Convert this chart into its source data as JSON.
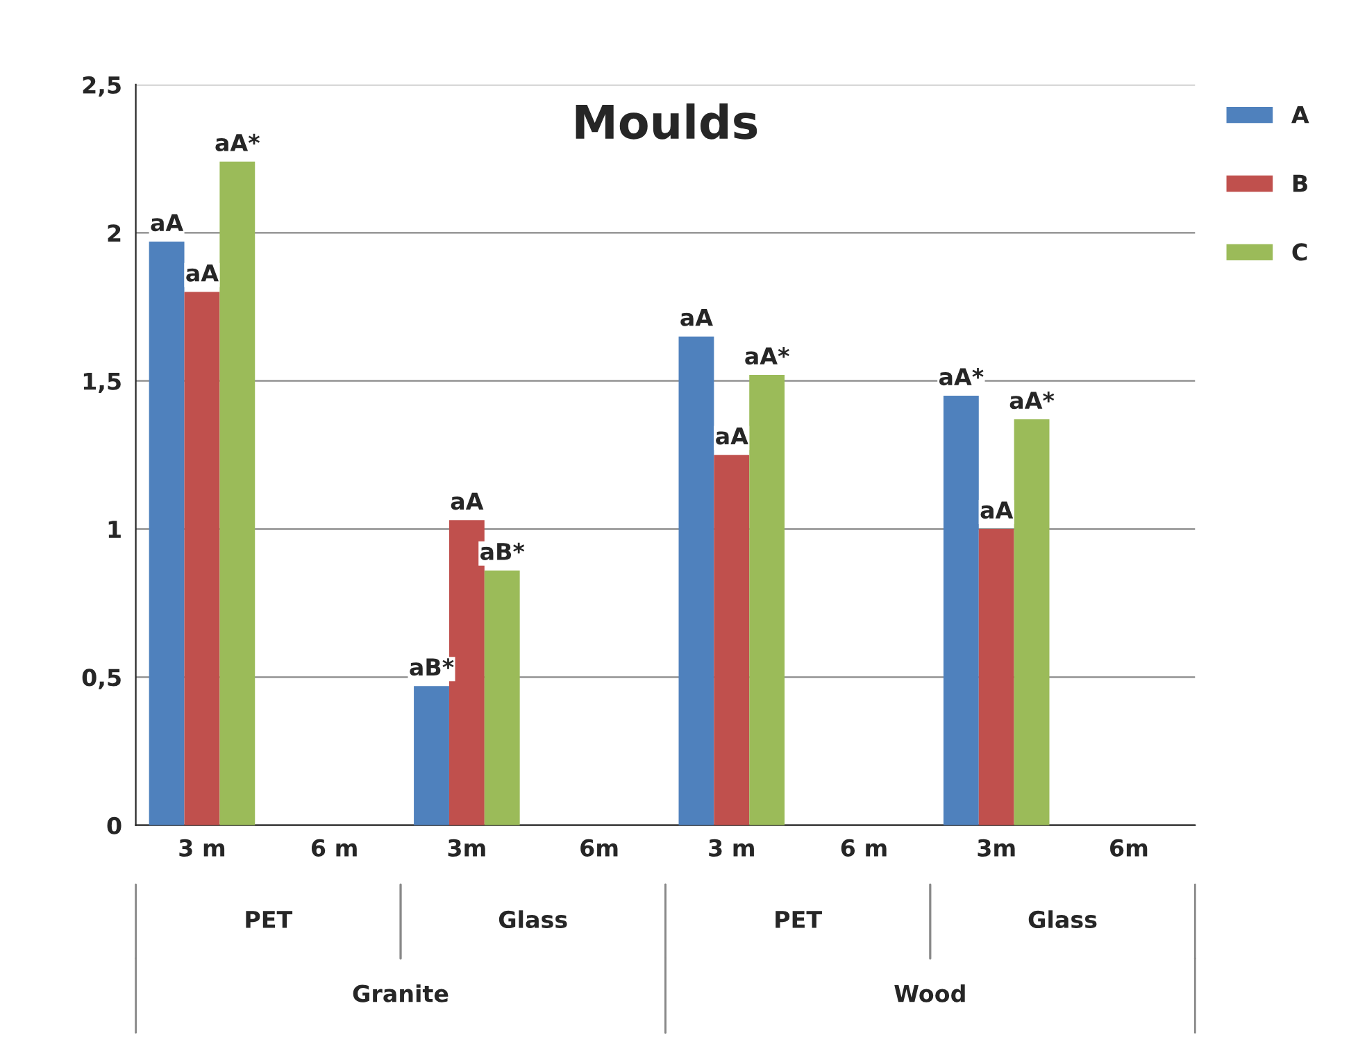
{
  "chart_data": {
    "type": "bar",
    "title": "Moulds",
    "categories": [
      "3 m",
      "6 m",
      "3m",
      "6m",
      "3 m",
      "6 m",
      "3m",
      "6m"
    ],
    "series": [
      {
        "name": "A",
        "color": "#4f81bd",
        "values": [
          1.97,
          0,
          0.47,
          0,
          1.65,
          0,
          1.45,
          0
        ],
        "value_labels": [
          "aA",
          null,
          "aB*",
          null,
          "aA",
          null,
          "aA*",
          null
        ]
      },
      {
        "name": "B",
        "color": "#c0504d",
        "values": [
          1.8,
          0,
          1.03,
          0,
          1.25,
          0,
          1.0,
          0
        ],
        "value_labels": [
          "aA",
          null,
          "aA",
          null,
          "aA",
          null,
          "aA",
          null
        ]
      },
      {
        "name": "C",
        "color": "#9bbb59",
        "values": [
          2.24,
          0,
          0.86,
          0,
          1.52,
          0,
          1.37,
          0
        ],
        "value_labels": [
          "aA*",
          null,
          "aB*",
          null,
          "aA*",
          null,
          "aA*",
          null
        ]
      }
    ],
    "annotations": [
      "PET",
      "Glass",
      "PET",
      "Glass",
      "Granite",
      "Wood"
    ],
    "ylim": [
      0,
      2.5
    ],
    "yticks": [
      0,
      {
        "value": 0.5,
        "label": "0,5"
      },
      1,
      {
        "value": 1.5,
        "label": "1,5"
      },
      2,
      {
        "value": 2.5,
        "label": "2,5"
      }
    ],
    "grid": "y",
    "legend": "top right"
  }
}
